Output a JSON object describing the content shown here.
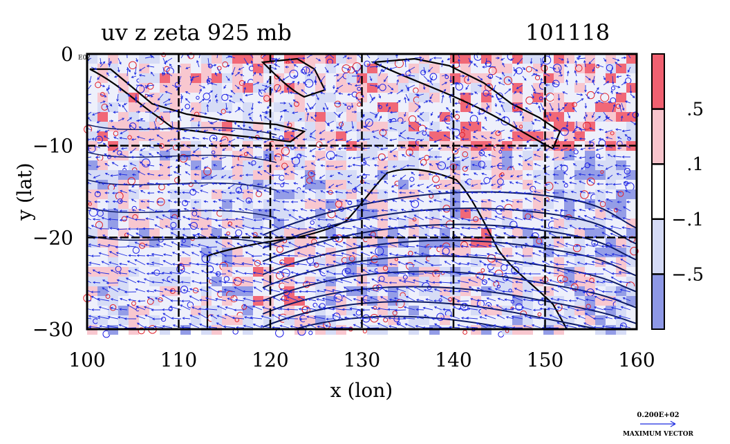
{
  "chart_data": {
    "type": "heatmap",
    "title": "uv z zeta 925 mb",
    "timestamp": "101118",
    "xlabel": "x (lon)",
    "ylabel": "y (lat)",
    "xlim": [
      100,
      160
    ],
    "ylim": [
      -30,
      0
    ],
    "x_ticks": [
      100,
      110,
      120,
      130,
      140,
      150,
      160
    ],
    "y_ticks": [
      0,
      -10,
      -20,
      -30
    ],
    "x_tick_labels": [
      "100",
      "110",
      "120",
      "130",
      "140",
      "150",
      "160"
    ],
    "y_tick_labels": [
      "0",
      "−10",
      "−20",
      "−30"
    ],
    "corner_label": "E02",
    "grid": true,
    "colorbar": {
      "labels": [
        ".5",
        ".1",
        "−.1",
        "−.5"
      ],
      "levels": [
        0.5,
        0.1,
        -0.1,
        -0.5
      ],
      "colors": [
        "#f06070",
        "#f8c4cc",
        "#ffffff",
        "#d4daf6",
        "#8e98e6"
      ]
    },
    "series_colors": {
      "positive_contour": "#e0202a",
      "negative_contour": "#1c1ce6",
      "vectors": "#1c2ae0",
      "streamlines": "#0c1a66"
    },
    "vector_key": {
      "magnitude": "0.200E+02",
      "label": "MAXIMUM VECTOR"
    }
  }
}
